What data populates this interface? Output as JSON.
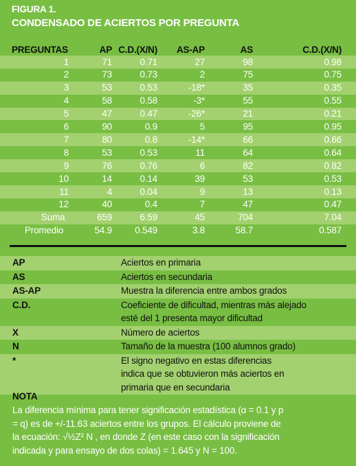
{
  "header": {
    "figure": "FIGURA 1.",
    "title": "CONDENSADO DE ACIERTOS POR PREGUNTA"
  },
  "table": {
    "columns": [
      "PREGUNTAS",
      "AP",
      "C.D.(X/N)",
      "AS-AP",
      "AS",
      "C.D.(X/N)"
    ],
    "rows": [
      [
        "1",
        "71",
        "0.71",
        "27",
        "98",
        "0.98"
      ],
      [
        "2",
        "73",
        "0.73",
        "2",
        "75",
        "0.75"
      ],
      [
        "3",
        "53",
        "0.53",
        "-18*",
        "35",
        "0.35"
      ],
      [
        "4",
        "58",
        "0.58",
        "-3*",
        "55",
        "0.55"
      ],
      [
        "5",
        "47",
        "0.47",
        "-26*",
        "21",
        "0.21"
      ],
      [
        "6",
        "90",
        "0.9",
        "5",
        "95",
        "0.95"
      ],
      [
        "7",
        "80",
        "0.8",
        "-14*",
        "66",
        "0.66"
      ],
      [
        "8",
        "53",
        "0.53",
        "11",
        "64",
        "0.64"
      ],
      [
        "9",
        "76",
        "0.76",
        "6",
        "82",
        "0.82"
      ],
      [
        "10",
        "14",
        "0.14",
        "39",
        "53",
        "0.53"
      ],
      [
        "11",
        "4",
        "0.04",
        "9",
        "13",
        "0.13"
      ],
      [
        "12",
        "40",
        "0.4",
        "7",
        "47",
        "0.47"
      ],
      [
        "Suma",
        "659",
        "6.59",
        "45",
        "704",
        "7.04"
      ],
      [
        "Promedio",
        "54.9",
        "0.549",
        "3.8",
        "58.7",
        "0.587"
      ]
    ]
  },
  "legend": [
    {
      "key": "AP",
      "lines": [
        "Aciertos en primaria"
      ]
    },
    {
      "key": "AS",
      "lines": [
        "Aciertos en secundaria"
      ]
    },
    {
      "key": "AS-AP",
      "lines": [
        "Muestra la diferencia entre ambos grados"
      ]
    },
    {
      "key": "C.D.",
      "lines": [
        "Coeficiente de dificultad, mientras más alejado",
        "esté del 1 presenta mayor dificultad"
      ]
    },
    {
      "key": "X",
      "lines": [
        "Número de aciertos"
      ]
    },
    {
      "key": "N",
      "lines": [
        "Tamaño de la muestra (100 alumnos grado)"
      ]
    },
    {
      "key": "*",
      "lines": [
        "El signo negativo en estas diferencias",
        "indica que se obtuvieron más aciertos en",
        "primaria que en secundaria"
      ]
    }
  ],
  "note": {
    "title": "NOTA",
    "lines": [
      "La diferencia mínima para tener significación estadística (α = 0.1 y p",
      "= q) es de +/-11.63 aciertos entre los grupos. El cálculo proviene de",
      "la ecuación: √½Z² N , en donde Z (en este caso con la significación",
      "indicada y para ensayo de dos colas) = 1.645 y  N = 100."
    ]
  }
}
